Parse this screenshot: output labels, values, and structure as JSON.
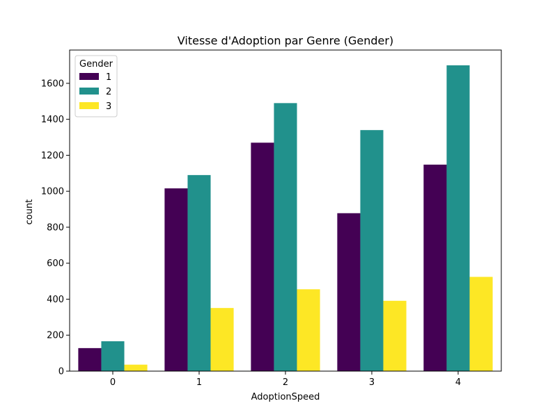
{
  "chart_data": {
    "type": "bar",
    "title": "Vitesse d'Adoption par Genre (Gender)",
    "xlabel": "AdoptionSpeed",
    "ylabel": "count",
    "categories": [
      "0",
      "1",
      "2",
      "3",
      "4"
    ],
    "ylim": [
      0,
      1785
    ],
    "yticks": [
      0,
      200,
      400,
      600,
      800,
      1000,
      1200,
      1400,
      1600
    ],
    "grid": false,
    "legend": {
      "title": "Gender",
      "placement": "top-left"
    },
    "series": [
      {
        "name": "1",
        "color": "#440154",
        "values": [
          128,
          1016,
          1270,
          878,
          1148
        ]
      },
      {
        "name": "2",
        "color": "#21918c",
        "values": [
          166,
          1090,
          1490,
          1340,
          1700
        ]
      },
      {
        "name": "3",
        "color": "#fde725",
        "values": [
          36,
          351,
          455,
          391,
          524
        ]
      }
    ]
  }
}
